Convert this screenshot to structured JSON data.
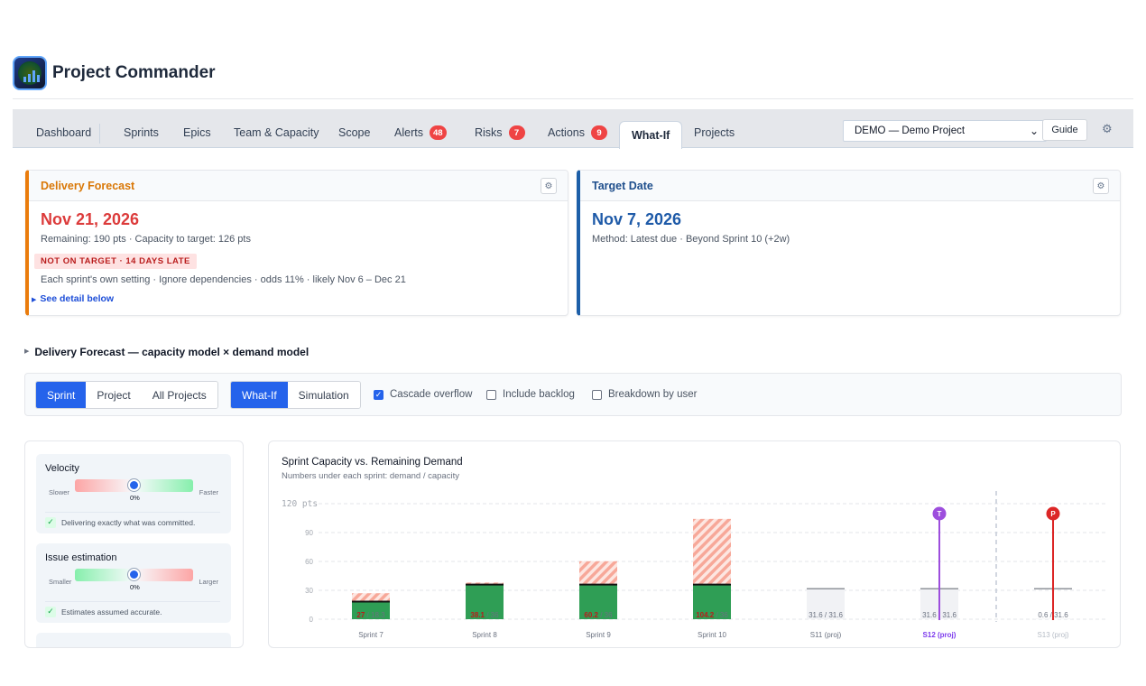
{
  "app": {
    "title": "Project Commander"
  },
  "tabs": [
    {
      "label": "Dashboard"
    },
    {
      "label": "Sprints"
    },
    {
      "label": "Epics"
    },
    {
      "label": "Team & Capacity"
    },
    {
      "label": "Scope"
    },
    {
      "label": "Alerts",
      "count": "48"
    },
    {
      "label": "Risks",
      "count": "7"
    },
    {
      "label": "Actions",
      "count": "9"
    },
    {
      "label": "What-If",
      "active": true
    },
    {
      "label": "Projects"
    }
  ],
  "toolbar": {
    "project_select": "DEMO — Demo Project",
    "guide_label": "Guide",
    "settings_icon": "gear-icon"
  },
  "forecast_card": {
    "title": "Delivery Forecast",
    "date": "Nov 21, 2026",
    "remaining": "Remaining: 190 pts · Capacity to target: 126 pts",
    "badge": "NOT ON TARGET · 14 DAYS LATE",
    "odds": "Each sprint's own setting · Ignore dependencies · odds 11% · likely Nov 6 – Dec 21",
    "detail_link": "See detail below",
    "accent": "#ea7c0c"
  },
  "target_card": {
    "title": "Target Date",
    "date": "Nov 7, 2026",
    "method": "Method: Latest due · Beyond Sprint 10 (+2w)",
    "accent": "#1d5fa8"
  },
  "section": {
    "title": "Delivery Forecast — capacity model × demand model"
  },
  "controls": {
    "scope": [
      "Sprint",
      "Project",
      "All Projects"
    ],
    "scope_selected": "Sprint",
    "mode": [
      "What-If",
      "Simulation"
    ],
    "mode_selected": "What-If",
    "cascade_overflow": {
      "label": "Cascade overflow",
      "checked": true
    },
    "include_backlog": {
      "label": "Include backlog",
      "checked": false
    },
    "breakdown_by_user": {
      "label": "Breakdown by user",
      "checked": false
    }
  },
  "sliders": [
    {
      "title": "Velocity",
      "left": "Slower",
      "right": "Faster",
      "value": "0%",
      "note": "Delivering exactly what was committed."
    },
    {
      "title": "Issue estimation",
      "left": "Smaller",
      "right": "Larger",
      "value": "0%",
      "note": "Estimates assumed accurate."
    }
  ],
  "chart_data": {
    "type": "bar",
    "title": "Sprint Capacity vs. Remaining Demand",
    "subtitle": "Numbers under each sprint: demand / capacity",
    "ylabel": "pts",
    "ylim": [
      0,
      120
    ],
    "yticks": [
      0,
      30,
      60,
      90,
      120
    ],
    "grid": true,
    "categories": [
      "Sprint 7",
      "Sprint 8",
      "Sprint 9",
      "Sprint 10",
      "S11 (proj)",
      "S12 (proj)",
      "S13 (proj)"
    ],
    "demand": [
      27,
      38.1,
      60.2,
      104.2,
      31.6,
      31.6,
      0.6
    ],
    "capacity": [
      18.3,
      36,
      36,
      36,
      31.6,
      31.6,
      31.6
    ],
    "demand_labels": [
      "27",
      "38.1",
      "60.2",
      "104.2",
      "31.6",
      "31.6",
      "0.6"
    ],
    "capacity_labels": [
      "18.3",
      "36",
      "36",
      "36",
      "31.6",
      "31.6",
      "31.6"
    ],
    "projected": [
      false,
      false,
      false,
      false,
      true,
      true,
      true
    ],
    "markers": [
      {
        "label": "T",
        "category": "S12 (proj)",
        "color": "#9d4edd"
      },
      {
        "label": "P",
        "category": "S13 (proj)",
        "color": "#dc2626"
      }
    ],
    "colors": {
      "capacity": "#2f9e55",
      "overflow": "#f8a99b",
      "projected": "#f1f2f5",
      "demand_label": "#b91c1c"
    }
  }
}
